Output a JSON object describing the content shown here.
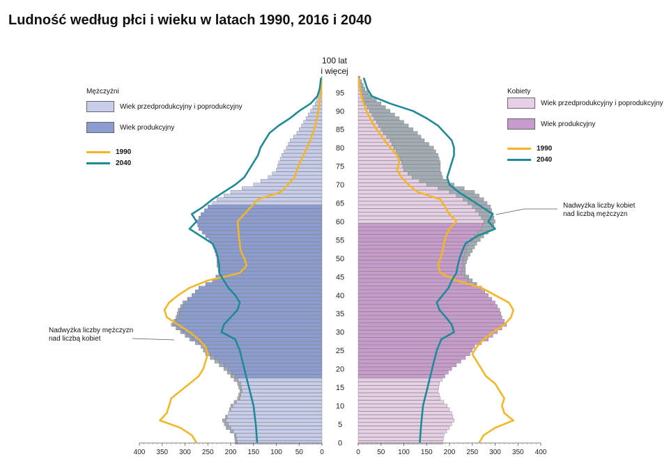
{
  "title": "Ludność według płci i wieku w latach 1990, 2016 i 2040",
  "legend": {
    "men_title": "Mężczyźni",
    "women_title": "Kobiety",
    "non_working": "Wiek przedprodukcyjny i poprodukcyjny",
    "working": "Wiek produkcyjny",
    "year_1990": "1990",
    "year_2040": "2040"
  },
  "annotations": {
    "male_surplus_1": "Nadwyżka liczby mężczyzn",
    "male_surplus_2": "nad liczbą kobiet",
    "female_surplus_1": "Nadwyżka liczby kobiet",
    "female_surplus_2": "nad liczbą mężczyzn"
  },
  "colors": {
    "men_nonworking": "#c7cdea",
    "men_working": "#8a9cd0",
    "women_nonworking": "#e7cfe6",
    "women_working": "#c79bcb",
    "excess": "#a3abb3",
    "bar_stroke": "#7a7a7a",
    "line_1990": "#f5b625",
    "line_2040": "#1d8a9a"
  },
  "chart_data": {
    "type": "bar",
    "subtype": "population-pyramid",
    "age_label_top_1": "100 lat",
    "age_label_top_2": "i więcej",
    "age_ticks": [
      0,
      5,
      10,
      15,
      20,
      25,
      30,
      35,
      40,
      45,
      50,
      55,
      60,
      65,
      70,
      75,
      80,
      85,
      90,
      95
    ],
    "x_ticks": [
      0,
      50,
      100,
      150,
      200,
      250,
      300,
      350,
      400
    ],
    "xlim": [
      0,
      400
    ],
    "working_age_men": [
      18,
      64
    ],
    "working_age_women": [
      18,
      59
    ],
    "profile_2016_men": [
      [
        0,
        190
      ],
      [
        2,
        192
      ],
      [
        4,
        210
      ],
      [
        6,
        218
      ],
      [
        8,
        205
      ],
      [
        10,
        200
      ],
      [
        12,
        185
      ],
      [
        14,
        180
      ],
      [
        16,
        185
      ],
      [
        18,
        200
      ],
      [
        20,
        215
      ],
      [
        22,
        235
      ],
      [
        24,
        255
      ],
      [
        26,
        265
      ],
      [
        28,
        290
      ],
      [
        30,
        310
      ],
      [
        32,
        330
      ],
      [
        34,
        320
      ],
      [
        36,
        315
      ],
      [
        38,
        305
      ],
      [
        40,
        285
      ],
      [
        42,
        270
      ],
      [
        44,
        240
      ],
      [
        46,
        225
      ],
      [
        48,
        230
      ],
      [
        50,
        230
      ],
      [
        52,
        235
      ],
      [
        54,
        240
      ],
      [
        56,
        255
      ],
      [
        58,
        270
      ],
      [
        60,
        275
      ],
      [
        62,
        265
      ],
      [
        64,
        250
      ],
      [
        66,
        230
      ],
      [
        68,
        200
      ],
      [
        70,
        150
      ],
      [
        72,
        118
      ],
      [
        74,
        100
      ],
      [
        76,
        95
      ],
      [
        78,
        88
      ],
      [
        80,
        78
      ],
      [
        82,
        70
      ],
      [
        84,
        55
      ],
      [
        86,
        45
      ],
      [
        88,
        35
      ],
      [
        90,
        25
      ],
      [
        92,
        15
      ],
      [
        94,
        8
      ],
      [
        96,
        4
      ],
      [
        99,
        1
      ]
    ],
    "profile_2016_women": [
      [
        0,
        185
      ],
      [
        2,
        188
      ],
      [
        4,
        200
      ],
      [
        6,
        210
      ],
      [
        8,
        205
      ],
      [
        10,
        195
      ],
      [
        12,
        180
      ],
      [
        14,
        175
      ],
      [
        16,
        178
      ],
      [
        18,
        190
      ],
      [
        20,
        205
      ],
      [
        22,
        225
      ],
      [
        24,
        245
      ],
      [
        26,
        255
      ],
      [
        28,
        285
      ],
      [
        30,
        305
      ],
      [
        32,
        325
      ],
      [
        34,
        315
      ],
      [
        36,
        310
      ],
      [
        38,
        300
      ],
      [
        40,
        285
      ],
      [
        42,
        270
      ],
      [
        44,
        250
      ],
      [
        46,
        235
      ],
      [
        48,
        235
      ],
      [
        50,
        240
      ],
      [
        52,
        250
      ],
      [
        54,
        260
      ],
      [
        56,
        275
      ],
      [
        58,
        295
      ],
      [
        60,
        300
      ],
      [
        62,
        295
      ],
      [
        64,
        290
      ],
      [
        66,
        275
      ],
      [
        68,
        255
      ],
      [
        70,
        210
      ],
      [
        72,
        185
      ],
      [
        74,
        180
      ],
      [
        76,
        180
      ],
      [
        78,
        175
      ],
      [
        80,
        165
      ],
      [
        82,
        145
      ],
      [
        84,
        130
      ],
      [
        86,
        110
      ],
      [
        88,
        90
      ],
      [
        90,
        70
      ],
      [
        92,
        50
      ],
      [
        94,
        30
      ],
      [
        96,
        15
      ],
      [
        99,
        4
      ]
    ],
    "line_1990_men": [
      [
        0,
        275
      ],
      [
        2,
        285
      ],
      [
        4,
        310
      ],
      [
        6,
        355
      ],
      [
        8,
        340
      ],
      [
        10,
        335
      ],
      [
        12,
        330
      ],
      [
        14,
        310
      ],
      [
        16,
        290
      ],
      [
        18,
        270
      ],
      [
        20,
        260
      ],
      [
        22,
        255
      ],
      [
        24,
        250
      ],
      [
        26,
        255
      ],
      [
        28,
        270
      ],
      [
        30,
        290
      ],
      [
        32,
        315
      ],
      [
        34,
        340
      ],
      [
        36,
        345
      ],
      [
        38,
        335
      ],
      [
        40,
        315
      ],
      [
        42,
        290
      ],
      [
        44,
        250
      ],
      [
        46,
        180
      ],
      [
        48,
        165
      ],
      [
        50,
        170
      ],
      [
        52,
        178
      ],
      [
        54,
        180
      ],
      [
        56,
        182
      ],
      [
        58,
        183
      ],
      [
        60,
        185
      ],
      [
        62,
        170
      ],
      [
        64,
        155
      ],
      [
        66,
        140
      ],
      [
        68,
        90
      ],
      [
        70,
        75
      ],
      [
        72,
        60
      ],
      [
        74,
        55
      ],
      [
        76,
        48
      ],
      [
        78,
        40
      ],
      [
        80,
        33
      ],
      [
        82,
        26
      ],
      [
        84,
        20
      ],
      [
        86,
        15
      ],
      [
        88,
        11
      ],
      [
        90,
        8
      ],
      [
        92,
        6
      ],
      [
        94,
        4
      ],
      [
        96,
        2
      ],
      [
        99,
        1
      ]
    ],
    "line_1990_women": [
      [
        0,
        265
      ],
      [
        2,
        275
      ],
      [
        4,
        300
      ],
      [
        6,
        340
      ],
      [
        8,
        320
      ],
      [
        10,
        315
      ],
      [
        12,
        320
      ],
      [
        14,
        310
      ],
      [
        16,
        300
      ],
      [
        18,
        280
      ],
      [
        20,
        270
      ],
      [
        22,
        260
      ],
      [
        24,
        250
      ],
      [
        26,
        260
      ],
      [
        28,
        275
      ],
      [
        30,
        295
      ],
      [
        32,
        320
      ],
      [
        34,
        335
      ],
      [
        36,
        340
      ],
      [
        38,
        330
      ],
      [
        40,
        300
      ],
      [
        42,
        270
      ],
      [
        44,
        215
      ],
      [
        46,
        180
      ],
      [
        48,
        175
      ],
      [
        50,
        180
      ],
      [
        52,
        185
      ],
      [
        54,
        188
      ],
      [
        56,
        192
      ],
      [
        58,
        200
      ],
      [
        60,
        215
      ],
      [
        62,
        200
      ],
      [
        64,
        190
      ],
      [
        66,
        180
      ],
      [
        68,
        130
      ],
      [
        70,
        110
      ],
      [
        72,
        95
      ],
      [
        74,
        85
      ],
      [
        76,
        90
      ],
      [
        78,
        85
      ],
      [
        80,
        70
      ],
      [
        82,
        58
      ],
      [
        84,
        46
      ],
      [
        86,
        35
      ],
      [
        88,
        26
      ],
      [
        90,
        18
      ],
      [
        92,
        12
      ],
      [
        94,
        7
      ],
      [
        96,
        4
      ],
      [
        99,
        1
      ]
    ],
    "line_2040_men": [
      [
        0,
        142
      ],
      [
        5,
        145
      ],
      [
        10,
        150
      ],
      [
        15,
        160
      ],
      [
        20,
        170
      ],
      [
        25,
        180
      ],
      [
        28,
        190
      ],
      [
        30,
        220
      ],
      [
        32,
        215
      ],
      [
        34,
        200
      ],
      [
        36,
        185
      ],
      [
        38,
        180
      ],
      [
        40,
        190
      ],
      [
        42,
        205
      ],
      [
        44,
        215
      ],
      [
        46,
        225
      ],
      [
        48,
        225
      ],
      [
        50,
        228
      ],
      [
        52,
        232
      ],
      [
        54,
        240
      ],
      [
        56,
        265
      ],
      [
        58,
        290
      ],
      [
        60,
        275
      ],
      [
        62,
        285
      ],
      [
        64,
        260
      ],
      [
        66,
        240
      ],
      [
        68,
        215
      ],
      [
        70,
        190
      ],
      [
        72,
        170
      ],
      [
        74,
        160
      ],
      [
        76,
        150
      ],
      [
        78,
        140
      ],
      [
        80,
        135
      ],
      [
        82,
        125
      ],
      [
        84,
        115
      ],
      [
        86,
        95
      ],
      [
        88,
        70
      ],
      [
        90,
        50
      ],
      [
        92,
        25
      ],
      [
        94,
        10
      ],
      [
        96,
        5
      ],
      [
        99,
        2
      ]
    ],
    "line_2040_women": [
      [
        0,
        135
      ],
      [
        5,
        138
      ],
      [
        10,
        142
      ],
      [
        15,
        152
      ],
      [
        20,
        162
      ],
      [
        25,
        172
      ],
      [
        28,
        182
      ],
      [
        30,
        210
      ],
      [
        32,
        205
      ],
      [
        34,
        192
      ],
      [
        36,
        178
      ],
      [
        38,
        172
      ],
      [
        40,
        185
      ],
      [
        42,
        198
      ],
      [
        44,
        205
      ],
      [
        46,
        215
      ],
      [
        48,
        218
      ],
      [
        50,
        222
      ],
      [
        52,
        228
      ],
      [
        54,
        235
      ],
      [
        56,
        260
      ],
      [
        58,
        300
      ],
      [
        60,
        285
      ],
      [
        62,
        295
      ],
      [
        64,
        270
      ],
      [
        66,
        245
      ],
      [
        68,
        220
      ],
      [
        70,
        200
      ],
      [
        72,
        195
      ],
      [
        74,
        200
      ],
      [
        76,
        205
      ],
      [
        78,
        210
      ],
      [
        80,
        210
      ],
      [
        82,
        205
      ],
      [
        84,
        190
      ],
      [
        86,
        175
      ],
      [
        88,
        150
      ],
      [
        90,
        120
      ],
      [
        92,
        70
      ],
      [
        94,
        30
      ],
      [
        96,
        20
      ],
      [
        99,
        12
      ]
    ]
  }
}
